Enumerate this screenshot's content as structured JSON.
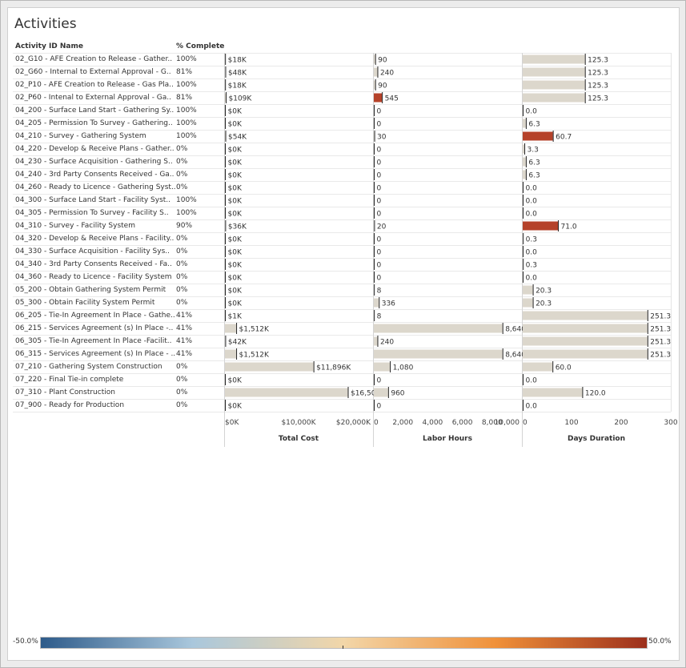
{
  "title": "Activities",
  "headers": {
    "activity": "Activity ID Name",
    "pct": "% Complete"
  },
  "legend": {
    "min_label": "-50.0%",
    "max_label": "50.0%"
  },
  "colors": {
    "neutral_bar": "#dcd7cc",
    "positive_bar": "#b5422a",
    "grid": "#e9e9e9"
  },
  "chart_data": {
    "type": "bar",
    "panels": [
      {
        "key": "cost",
        "axis_title": "Total Cost",
        "ticks": [
          0,
          10000,
          20000
        ],
        "tick_labels": [
          "$0K",
          "$10,000K",
          "$20,000K"
        ],
        "xlim": [
          0,
          20000
        ]
      },
      {
        "key": "labor",
        "axis_title": "Labor Hours",
        "ticks": [
          0,
          2000,
          4000,
          6000,
          8000,
          10000
        ],
        "tick_labels": [
          "0",
          "2,000",
          "4,000",
          "6,000",
          "8,000",
          "10,000"
        ],
        "xlim": [
          0,
          10000
        ]
      },
      {
        "key": "days",
        "axis_title": "Days Duration",
        "ticks": [
          0,
          100,
          200,
          300
        ],
        "tick_labels": [
          "0",
          "100",
          "200",
          "300"
        ],
        "xlim": [
          0,
          300
        ]
      }
    ],
    "rows": [
      {
        "name": "02_G10 - AFE Creation to Release - Gather..",
        "pct": "100%",
        "cost": 18,
        "cost_label": "$18K",
        "labor": 90,
        "labor_label": "90",
        "days": 125.3,
        "days_label": "125.3",
        "labor_hl": false,
        "days_hl": false
      },
      {
        "name": "02_G60 - Internal to External Approval - G..",
        "pct": "81%",
        "cost": 48,
        "cost_label": "$48K",
        "labor": 240,
        "labor_label": "240",
        "days": 125.3,
        "days_label": "125.3",
        "labor_hl": false,
        "days_hl": false
      },
      {
        "name": "02_P10 - AFE Creation to Release - Gas Pla..",
        "pct": "100%",
        "cost": 18,
        "cost_label": "$18K",
        "labor": 90,
        "labor_label": "90",
        "days": 125.3,
        "days_label": "125.3",
        "labor_hl": false,
        "days_hl": false
      },
      {
        "name": "02_P60 - Intenal to External Approval - Ga..",
        "pct": "81%",
        "cost": 109,
        "cost_label": "$109K",
        "labor": 545,
        "labor_label": "545",
        "days": 125.3,
        "days_label": "125.3",
        "labor_hl": true,
        "days_hl": false
      },
      {
        "name": "04_200 - Surface Land Start - Gathering Sy..",
        "pct": "100%",
        "cost": 0,
        "cost_label": "$0K",
        "labor": 0,
        "labor_label": "0",
        "days": 0,
        "days_label": "0.0",
        "labor_hl": false,
        "days_hl": false
      },
      {
        "name": "04_205 - Permission To Survey - Gathering..",
        "pct": "100%",
        "cost": 0,
        "cost_label": "$0K",
        "labor": 0,
        "labor_label": "0",
        "days": 6.3,
        "days_label": "6.3",
        "labor_hl": false,
        "days_hl": false
      },
      {
        "name": "04_210 - Survey - Gathering System",
        "pct": "100%",
        "cost": 54,
        "cost_label": "$54K",
        "labor": 30,
        "labor_label": "30",
        "days": 60.7,
        "days_label": "60.7",
        "labor_hl": false,
        "days_hl": true
      },
      {
        "name": "04_220 - Develop & Receive Plans - Gather..",
        "pct": "0%",
        "cost": 0,
        "cost_label": "$0K",
        "labor": 0,
        "labor_label": "0",
        "days": 3.3,
        "days_label": "3.3",
        "labor_hl": false,
        "days_hl": false
      },
      {
        "name": "04_230 - Surface Acquisition - Gathering S..",
        "pct": "0%",
        "cost": 0,
        "cost_label": "$0K",
        "labor": 0,
        "labor_label": "0",
        "days": 6.3,
        "days_label": "6.3",
        "labor_hl": false,
        "days_hl": false
      },
      {
        "name": "04_240 - 3rd Party Consents Received - Ga..",
        "pct": "0%",
        "cost": 0,
        "cost_label": "$0K",
        "labor": 0,
        "labor_label": "0",
        "days": 6.3,
        "days_label": "6.3",
        "labor_hl": false,
        "days_hl": false
      },
      {
        "name": "04_260 - Ready to Licence - Gathering Syst..",
        "pct": "0%",
        "cost": 0,
        "cost_label": "$0K",
        "labor": 0,
        "labor_label": "0",
        "days": 0,
        "days_label": "0.0",
        "labor_hl": false,
        "days_hl": false
      },
      {
        "name": "04_300 - Surface Land Start - Facility Syst..",
        "pct": "100%",
        "cost": 0,
        "cost_label": "$0K",
        "labor": 0,
        "labor_label": "0",
        "days": 0,
        "days_label": "0.0",
        "labor_hl": false,
        "days_hl": false
      },
      {
        "name": "04_305 - Permission To Survey - Facility S..",
        "pct": "100%",
        "cost": 0,
        "cost_label": "$0K",
        "labor": 0,
        "labor_label": "0",
        "days": 0,
        "days_label": "0.0",
        "labor_hl": false,
        "days_hl": false
      },
      {
        "name": "04_310 - Survey - Facility System",
        "pct": "90%",
        "cost": 36,
        "cost_label": "$36K",
        "labor": 20,
        "labor_label": "20",
        "days": 71,
        "days_label": "71.0",
        "labor_hl": false,
        "days_hl": true
      },
      {
        "name": "04_320 - Develop & Receive Plans - Facility..",
        "pct": "0%",
        "cost": 0,
        "cost_label": "$0K",
        "labor": 0,
        "labor_label": "0",
        "days": 0.3,
        "days_label": "0.3",
        "labor_hl": false,
        "days_hl": false
      },
      {
        "name": "04_330 - Surface Acquisition - Facility Sys..",
        "pct": "0%",
        "cost": 0,
        "cost_label": "$0K",
        "labor": 0,
        "labor_label": "0",
        "days": 0,
        "days_label": "0.0",
        "labor_hl": false,
        "days_hl": false
      },
      {
        "name": "04_340 - 3rd Party Consents Received - Fa..",
        "pct": "0%",
        "cost": 0,
        "cost_label": "$0K",
        "labor": 0,
        "labor_label": "0",
        "days": 0.3,
        "days_label": "0.3",
        "labor_hl": false,
        "days_hl": false
      },
      {
        "name": "04_360 - Ready to Licence - Facility System",
        "pct": "0%",
        "cost": 0,
        "cost_label": "$0K",
        "labor": 0,
        "labor_label": "0",
        "days": 0,
        "days_label": "0.0",
        "labor_hl": false,
        "days_hl": false
      },
      {
        "name": "05_200 - Obtain Gathering System Permit",
        "pct": "0%",
        "cost": 0,
        "cost_label": "$0K",
        "labor": 8,
        "labor_label": "8",
        "days": 20.3,
        "days_label": "20.3",
        "labor_hl": false,
        "days_hl": false
      },
      {
        "name": "05_300 - Obtain Facility System Permit",
        "pct": "0%",
        "cost": 0,
        "cost_label": "$0K",
        "labor": 336,
        "labor_label": "336",
        "days": 20.3,
        "days_label": "20.3",
        "labor_hl": false,
        "days_hl": false
      },
      {
        "name": "06_205 - Tie-In Agreement In Place - Gathe..",
        "pct": "41%",
        "cost": 1,
        "cost_label": "$1K",
        "labor": 8,
        "labor_label": "8",
        "days": 251.3,
        "days_label": "251.3",
        "labor_hl": false,
        "days_hl": false
      },
      {
        "name": "06_215 - Services Agreement (s) In Place -..",
        "pct": "41%",
        "cost": 1512,
        "cost_label": "$1,512K",
        "labor": 8640,
        "labor_label": "8,640",
        "days": 251.3,
        "days_label": "251.3",
        "labor_hl": false,
        "days_hl": false
      },
      {
        "name": "06_305 - Tie-In Agreement In Place -Facilit..",
        "pct": "41%",
        "cost": 42,
        "cost_label": "$42K",
        "labor": 240,
        "labor_label": "240",
        "days": 251.3,
        "days_label": "251.3",
        "labor_hl": false,
        "days_hl": false
      },
      {
        "name": "06_315 - Services Agreement (s) In Place - ..",
        "pct": "41%",
        "cost": 1512,
        "cost_label": "$1,512K",
        "labor": 8640,
        "labor_label": "8,640",
        "days": 251.3,
        "days_label": "251.3",
        "labor_hl": false,
        "days_hl": false
      },
      {
        "name": "07_210 - Gathering System Construction",
        "pct": "0%",
        "cost": 11896,
        "cost_label": "$11,896K",
        "labor": 1080,
        "labor_label": "1,080",
        "days": 60,
        "days_label": "60.0",
        "labor_hl": false,
        "days_hl": false
      },
      {
        "name": "07_220 - Final Tie-in complete",
        "pct": "0%",
        "cost": 0,
        "cost_label": "$0K",
        "labor": 0,
        "labor_label": "0",
        "days": 0,
        "days_label": "0.0",
        "labor_hl": false,
        "days_hl": false
      },
      {
        "name": "07_310 - Plant Construction",
        "pct": "0%",
        "cost": 16504,
        "cost_label": "$16,504K",
        "labor": 960,
        "labor_label": "960",
        "days": 120,
        "days_label": "120.0",
        "labor_hl": false,
        "days_hl": false
      },
      {
        "name": "07_900 - Ready for Production",
        "pct": "0%",
        "cost": 0,
        "cost_label": "$0K",
        "labor": 0,
        "labor_label": "0",
        "days": 0,
        "days_label": "0.0",
        "labor_hl": false,
        "days_hl": false
      }
    ],
    "color_scale": {
      "type": "diverging",
      "min": -50.0,
      "max": 50.0,
      "colors": [
        "#2e5b8a",
        "#a9c7dc",
        "#f2d6a8",
        "#f0913a",
        "#9c2f1c"
      ]
    }
  }
}
